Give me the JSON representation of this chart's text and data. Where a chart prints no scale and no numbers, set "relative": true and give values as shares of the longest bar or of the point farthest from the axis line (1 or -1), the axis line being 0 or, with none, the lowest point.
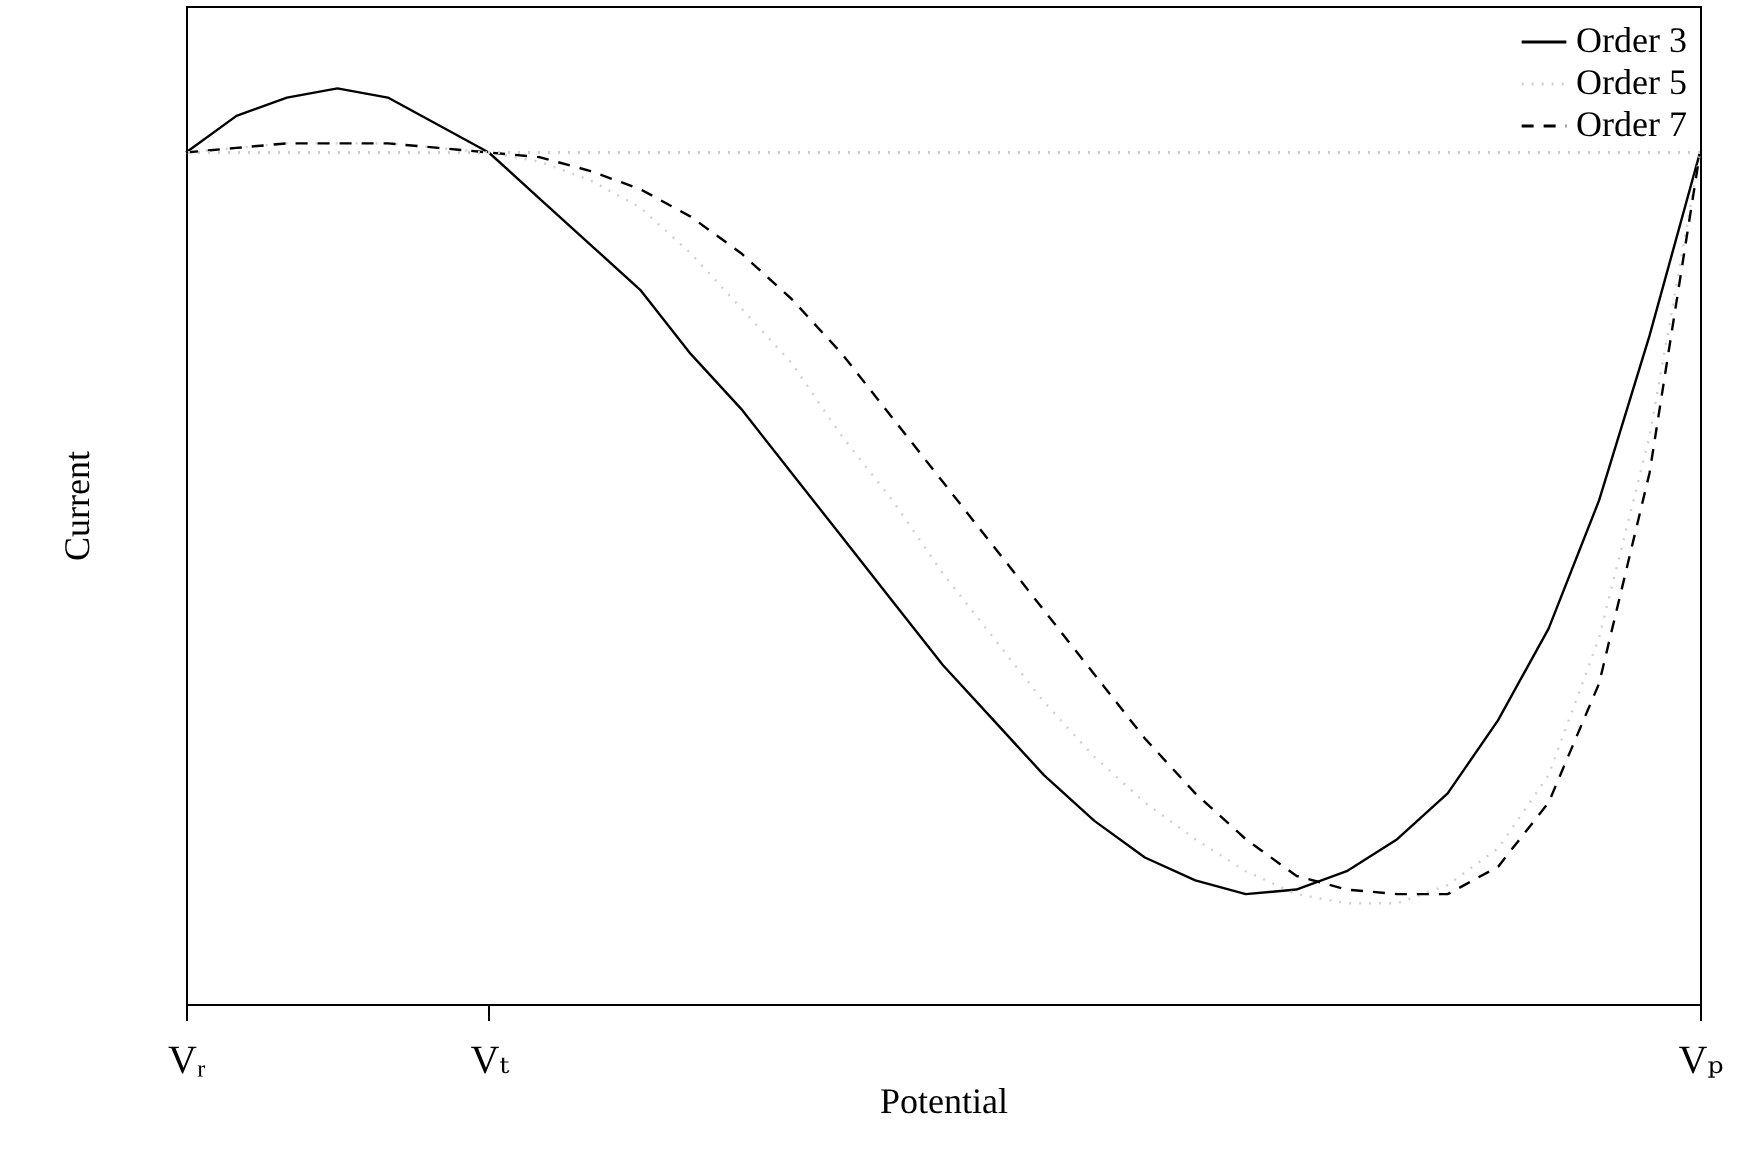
{
  "chart_data": {
    "type": "line",
    "xlabel": "Potential",
    "ylabel": "Current",
    "relative": true,
    "categories": [
      "Vᵣ",
      null,
      null,
      null,
      null,
      null,
      "Vₜ",
      null,
      null,
      null,
      null,
      null,
      null,
      null,
      null,
      null,
      null,
      null,
      null,
      null,
      null,
      null,
      null,
      null,
      null,
      null,
      null,
      null,
      null,
      null,
      "Vₚ"
    ],
    "legend": "top right",
    "ref_lines": [
      {
        "axis": "y",
        "value": 0.93,
        "color": "#cccccc",
        "line_style": "dotted"
      }
    ],
    "series": [
      {
        "name": "Order 3",
        "color": "#000000",
        "line_style": "solid",
        "values": [
          0.93,
          0.97,
          0.99,
          1,
          0.99,
          0.96,
          0.93,
          0.88,
          0.83,
          0.78,
          0.71,
          0.65,
          0.58,
          0.51,
          0.44,
          0.37,
          0.31,
          0.25,
          0.2,
          0.16,
          0.135,
          0.12,
          0.125,
          0.145,
          0.18,
          0.23,
          0.31,
          0.41,
          0.55,
          0.73,
          0.93
        ]
      },
      {
        "name": "Order 5",
        "color": "#d0d0d0",
        "line_style": "dotted",
        "values": [
          0.93,
          0.935,
          0.94,
          0.94,
          0.94,
          0.935,
          0.93,
          0.92,
          0.9,
          0.87,
          0.82,
          0.76,
          0.7,
          0.62,
          0.55,
          0.47,
          0.4,
          0.33,
          0.27,
          0.22,
          0.18,
          0.145,
          0.12,
          0.11,
          0.11,
          0.13,
          0.17,
          0.25,
          0.4,
          0.62,
          0.93
        ]
      },
      {
        "name": "Order 7",
        "color": "#000000",
        "line_style": "dashed",
        "values": [
          0.93,
          0.935,
          0.94,
          0.94,
          0.94,
          0.935,
          0.93,
          0.925,
          0.91,
          0.89,
          0.86,
          0.82,
          0.77,
          0.71,
          0.64,
          0.57,
          0.5,
          0.43,
          0.36,
          0.29,
          0.23,
          0.18,
          0.14,
          0.125,
          0.12,
          0.12,
          0.15,
          0.22,
          0.35,
          0.58,
          0.93
        ]
      }
    ]
  }
}
